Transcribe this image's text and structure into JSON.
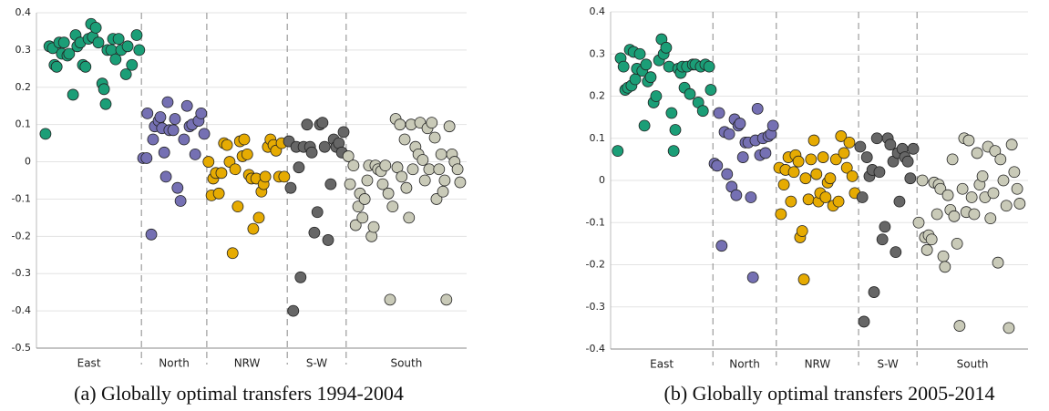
{
  "chart_data": [
    {
      "type": "scatter",
      "caption": "(a) Globally optimal transfers 1994-2004",
      "xlim": [
        0,
        100
      ],
      "ylim": [
        -0.5,
        0.4
      ],
      "yticks": [
        -0.5,
        -0.4,
        -0.3,
        -0.2,
        -0.1,
        0,
        0.1,
        0.2,
        0.3,
        0.4
      ],
      "grid": true,
      "categories": [
        "East",
        "North",
        "NRW",
        "S-W",
        "South"
      ],
      "dividers": [
        24.4,
        39.6,
        58.3,
        72
      ],
      "series": [
        {
          "color": "#1b9e77",
          "x": [
            2.1,
            3.0,
            3.8,
            4.2,
            4.7,
            5.3,
            5.9,
            6.4,
            7.2,
            7.6,
            8.5,
            9.1,
            9.5,
            10.2,
            10.8,
            11.4,
            12.1,
            12.7,
            13.1,
            13.8,
            14.4,
            15.3,
            15.7,
            16.1,
            16.5,
            17.4,
            17.8,
            18.4,
            19.1,
            19.7,
            20.8,
            21.2,
            22.2,
            23.3,
            23.9
          ],
          "values": [
            0.075,
            0.31,
            0.305,
            0.26,
            0.255,
            0.32,
            0.29,
            0.32,
            0.285,
            0.29,
            0.18,
            0.34,
            0.31,
            0.32,
            0.26,
            0.255,
            0.33,
            0.37,
            0.335,
            0.36,
            0.32,
            0.21,
            0.195,
            0.155,
            0.3,
            0.3,
            0.33,
            0.275,
            0.33,
            0.3,
            0.235,
            0.31,
            0.26,
            0.34,
            0.3
          ]
        },
        {
          "color": "#7570b3",
          "x": [
            24.8,
            25.6,
            25.8,
            26.7,
            27.1,
            27.5,
            28.4,
            28.8,
            29.2,
            29.7,
            30.1,
            30.5,
            30.9,
            31.8,
            32.2,
            32.8,
            33.5,
            34.3,
            35.0,
            35.6,
            36.2,
            36.9,
            37.7,
            38.3,
            39.0
          ],
          "values": [
            0.01,
            0.01,
            0.13,
            -0.195,
            0.06,
            0.095,
            0.11,
            0.12,
            0.09,
            0.025,
            -0.04,
            0.16,
            0.085,
            0.085,
            0.115,
            -0.07,
            -0.105,
            0.06,
            0.15,
            0.095,
            0.1,
            0.02,
            0.11,
            0.13,
            0.075
          ]
        },
        {
          "color": "#e6ab02",
          "x": [
            40.0,
            40.7,
            41.1,
            41.7,
            42.4,
            43.0,
            43.6,
            44.3,
            44.9,
            45.6,
            46.2,
            46.8,
            47.3,
            47.9,
            48.3,
            49.0,
            49.4,
            50.0,
            50.4,
            51.1,
            51.7,
            52.3,
            52.8,
            53.2,
            53.8,
            54.4,
            55.1,
            55.7,
            56.4,
            57.0,
            57.6
          ],
          "values": [
            0,
            -0.09,
            -0.045,
            -0.03,
            -0.085,
            -0.03,
            0.05,
            0.045,
            0,
            -0.245,
            -0.02,
            -0.12,
            0.055,
            0.015,
            0.06,
            0.02,
            -0.035,
            -0.045,
            -0.18,
            -0.045,
            -0.15,
            -0.08,
            -0.06,
            -0.04,
            0.04,
            0.06,
            0.045,
            0.03,
            -0.04,
            0.05,
            -0.04
          ]
        },
        {
          "color": "#666666",
          "x": [
            58.7,
            59.1,
            59.7,
            60.4,
            61.0,
            61.4,
            62.1,
            62.9,
            63.6,
            64.0,
            64.6,
            65.3,
            65.9,
            66.5,
            67.0,
            67.8,
            68.4,
            69.1,
            69.7,
            70.3,
            71.0,
            71.4
          ],
          "values": [
            0.055,
            -0.07,
            -0.4,
            0.04,
            -0.015,
            -0.31,
            0.04,
            0.1,
            0.04,
            0.025,
            -0.19,
            -0.135,
            0.1,
            0.105,
            0.04,
            -0.21,
            -0.06,
            0.06,
            0.04,
            0.05,
            0.025,
            0.08
          ]
        },
        {
          "color": "#c9cab8",
          "x": [
            72.5,
            72.9,
            73.7,
            74.2,
            74.8,
            75.2,
            75.8,
            76.3,
            76.9,
            77.3,
            77.9,
            78.4,
            78.8,
            79.4,
            80.1,
            80.5,
            81.1,
            81.8,
            82.2,
            82.8,
            83.5,
            83.9,
            84.5,
            84.9,
            85.6,
            86.0,
            86.6,
            87.1,
            87.5,
            88.1,
            88.8,
            89.2,
            89.8,
            90.3,
            90.9,
            91.3,
            91.9,
            92.6,
            93.0,
            93.6,
            94.1,
            94.5,
            94.9,
            95.3,
            96.0,
            96.6,
            97.2,
            97.9,
            98.5
          ],
          "values": [
            0.015,
            -0.06,
            -0.01,
            -0.17,
            -0.12,
            -0.085,
            -0.15,
            -0.1,
            -0.05,
            -0.01,
            -0.2,
            -0.175,
            -0.01,
            -0.02,
            -0.025,
            -0.06,
            -0.01,
            -0.085,
            -0.37,
            -0.12,
            0.115,
            -0.015,
            0.1,
            -0.04,
            0.06,
            -0.07,
            -0.15,
            0.1,
            -0.02,
            0.04,
            0.02,
            0.105,
            0.005,
            -0.05,
            0.09,
            -0.02,
            0.105,
            0.065,
            -0.1,
            -0.02,
            0.02,
            -0.08,
            -0.05,
            -0.37,
            0.095,
            0.02,
            0,
            -0.02,
            -0.055
          ]
        }
      ]
    },
    {
      "type": "scatter",
      "caption": "(b) Globally optimal transfers 2005-2014",
      "xlim": [
        0,
        100
      ],
      "ylim": [
        -0.4,
        0.4
      ],
      "yticks": [
        -0.4,
        -0.3,
        -0.2,
        -0.1,
        0,
        0.1,
        0.2,
        0.3,
        0.4
      ],
      "grid": true,
      "categories": [
        "East",
        "North",
        "NRW",
        "S-W",
        "South"
      ],
      "dividers": [
        24.5,
        39.7,
        59.4,
        73.4
      ],
      "series": [
        {
          "color": "#1b9e77",
          "x": [
            1.7,
            2.4,
            3.1,
            3.5,
            4.1,
            4.6,
            5.0,
            5.5,
            5.9,
            6.3,
            7.0,
            7.6,
            8.1,
            8.5,
            8.9,
            9.6,
            10.3,
            10.9,
            11.6,
            12.2,
            12.7,
            13.3,
            14.0,
            14.6,
            15.1,
            15.5,
            16.2,
            16.8,
            17.2,
            17.7,
            18.3,
            19.0,
            19.7,
            20.3,
            21.0,
            21.6,
            22.1,
            22.7,
            23.6,
            24.0
          ],
          "values": [
            0.07,
            0.29,
            0.27,
            0.215,
            0.22,
            0.31,
            0.225,
            0.305,
            0.24,
            0.265,
            0.3,
            0.26,
            0.13,
            0.275,
            0.235,
            0.245,
            0.185,
            0.2,
            0.285,
            0.335,
            0.3,
            0.315,
            0.27,
            0.16,
            0.07,
            0.12,
            0.265,
            0.255,
            0.27,
            0.22,
            0.27,
            0.205,
            0.275,
            0.275,
            0.185,
            0.27,
            0.165,
            0.275,
            0.27,
            0.215
          ]
        },
        {
          "color": "#7570b3",
          "x": [
            24.9,
            25.5,
            26.0,
            26.6,
            27.3,
            27.9,
            28.4,
            29.0,
            29.7,
            30.1,
            30.6,
            31.0,
            31.7,
            32.3,
            33.0,
            33.6,
            34.1,
            34.7,
            35.2,
            35.8,
            36.5,
            37.1,
            37.8,
            38.4,
            38.9
          ],
          "values": [
            0.04,
            0.035,
            0.16,
            -0.155,
            0.115,
            0.015,
            0.11,
            -0.015,
            0.145,
            -0.035,
            0.13,
            0.135,
            0.055,
            0.09,
            0.09,
            -0.04,
            -0.23,
            0.095,
            0.17,
            0.06,
            0.1,
            0.065,
            0.105,
            0.11,
            0.13
          ]
        },
        {
          "color": "#e6ab02",
          "x": [
            40.4,
            40.8,
            41.5,
            41.9,
            42.6,
            43.2,
            43.9,
            44.3,
            45.0,
            45.4,
            45.9,
            46.3,
            46.7,
            47.4,
            48.0,
            48.7,
            49.3,
            49.8,
            50.2,
            50.9,
            51.5,
            52.0,
            52.6,
            53.3,
            54.0,
            54.6,
            55.2,
            55.9,
            56.6,
            57.2,
            57.9,
            58.5
          ],
          "values": [
            0.03,
            -0.08,
            -0.01,
            0.025,
            0.055,
            -0.05,
            0.02,
            0.06,
            0.045,
            -0.135,
            -0.12,
            -0.235,
            0.005,
            -0.045,
            0.05,
            0.095,
            0.015,
            -0.05,
            -0.03,
            0.055,
            -0.04,
            -0.005,
            0.005,
            -0.06,
            0.05,
            -0.05,
            0.105,
            0.065,
            0.03,
            0.09,
            0.01,
            -0.03
          ]
        },
        {
          "color": "#666666",
          "x": [
            59.8,
            60.3,
            60.7,
            61.4,
            62.0,
            62.7,
            63.1,
            63.8,
            64.4,
            65.1,
            65.7,
            66.4,
            67.0,
            67.7,
            68.3,
            68.8,
            69.2,
            69.9,
            70.5,
            71.2,
            71.8,
            72.5
          ],
          "values": [
            0.08,
            -0.04,
            -0.335,
            0.055,
            0.01,
            0.025,
            -0.265,
            0.1,
            0.02,
            -0.14,
            -0.11,
            0.1,
            0.085,
            0.045,
            -0.17,
            0.065,
            -0.05,
            0.075,
            0.055,
            0.045,
            0.005,
            0.075
          ]
        },
        {
          "color": "#c9cab8",
          "x": [
            73.8,
            74.7,
            75.3,
            75.8,
            76.2,
            76.9,
            77.5,
            78.2,
            78.6,
            79.0,
            79.7,
            80.1,
            80.8,
            81.4,
            81.9,
            82.3,
            83.0,
            83.6,
            84.3,
            84.7,
            85.2,
            85.8,
            86.5,
            87.1,
            87.8,
            88.4,
            89.1,
            89.7,
            90.4,
            91.0,
            91.7,
            92.1,
            92.8,
            93.4,
            94.1,
            94.8,
            95.4,
            96.1,
            96.7,
            97.4,
            98.0
          ],
          "values": [
            -0.1,
            0,
            -0.135,
            -0.165,
            -0.13,
            -0.14,
            -0.005,
            -0.08,
            -0.01,
            -0.02,
            -0.18,
            -0.205,
            -0.035,
            -0.07,
            0.05,
            -0.085,
            -0.15,
            -0.345,
            -0.02,
            0.1,
            -0.075,
            0.095,
            -0.04,
            -0.08,
            0.065,
            -0.01,
            0.01,
            -0.04,
            0.08,
            -0.09,
            -0.03,
            0.07,
            -0.195,
            0.05,
            0,
            -0.06,
            -0.35,
            0.085,
            0.02,
            -0.02,
            -0.055
          ]
        }
      ]
    }
  ]
}
